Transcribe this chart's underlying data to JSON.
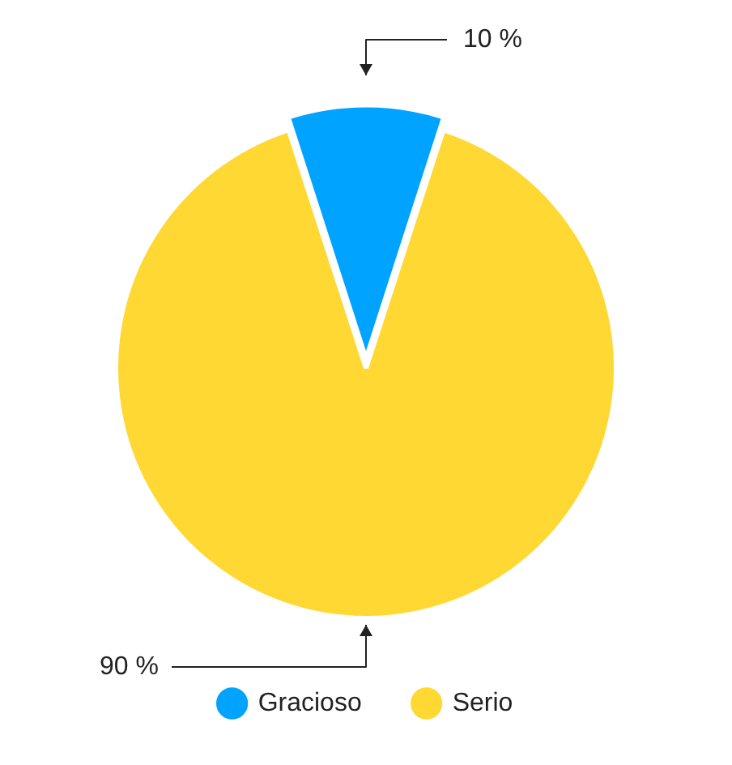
{
  "chart_data": {
    "type": "pie",
    "categories": [
      "Gracioso",
      "Serio"
    ],
    "values": [
      10,
      90
    ],
    "colors": [
      "#00a3ff",
      "#ffd833"
    ],
    "value_labels": [
      "10 %",
      "90 %"
    ],
    "legend": "bottom"
  }
}
